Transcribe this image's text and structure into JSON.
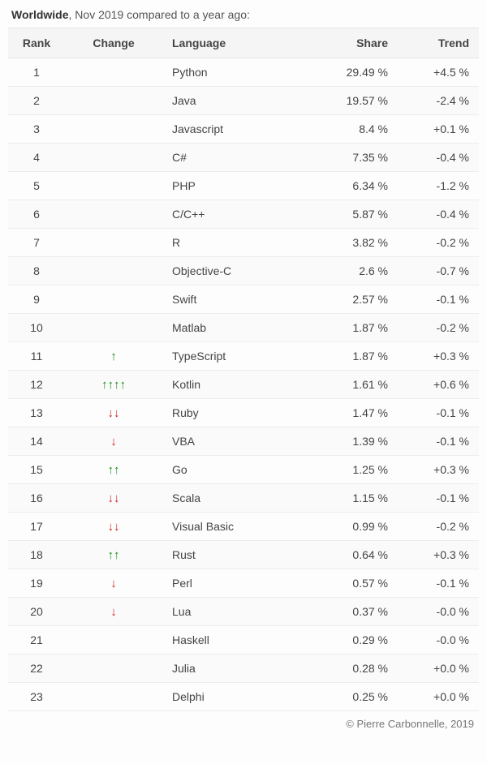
{
  "title_bold": "Worldwide",
  "title_rest": ", Nov 2019 compared to a year ago:",
  "columns": {
    "rank": "Rank",
    "change": "Change",
    "language": "Language",
    "share": "Share",
    "trend": "Trend"
  },
  "arrow_glyphs": {
    "up": "↑",
    "down": "↓"
  },
  "colors": {
    "up": "#1a8f1a",
    "down": "#d02424",
    "header_bg": "#f5f5f5",
    "row_alt_bg": "#fafafa",
    "border": "#ececec",
    "text": "#444"
  },
  "rows": [
    {
      "rank": "1",
      "change_up": 0,
      "change_down": 0,
      "language": "Python",
      "share": "29.49 %",
      "trend": "+4.5 %"
    },
    {
      "rank": "2",
      "change_up": 0,
      "change_down": 0,
      "language": "Java",
      "share": "19.57 %",
      "trend": "-2.4 %"
    },
    {
      "rank": "3",
      "change_up": 0,
      "change_down": 0,
      "language": "Javascript",
      "share": "8.4 %",
      "trend": "+0.1 %"
    },
    {
      "rank": "4",
      "change_up": 0,
      "change_down": 0,
      "language": "C#",
      "share": "7.35 %",
      "trend": "-0.4 %"
    },
    {
      "rank": "5",
      "change_up": 0,
      "change_down": 0,
      "language": "PHP",
      "share": "6.34 %",
      "trend": "-1.2 %"
    },
    {
      "rank": "6",
      "change_up": 0,
      "change_down": 0,
      "language": "C/C++",
      "share": "5.87 %",
      "trend": "-0.4 %"
    },
    {
      "rank": "7",
      "change_up": 0,
      "change_down": 0,
      "language": "R",
      "share": "3.82 %",
      "trend": "-0.2 %"
    },
    {
      "rank": "8",
      "change_up": 0,
      "change_down": 0,
      "language": "Objective-C",
      "share": "2.6 %",
      "trend": "-0.7 %"
    },
    {
      "rank": "9",
      "change_up": 0,
      "change_down": 0,
      "language": "Swift",
      "share": "2.57 %",
      "trend": "-0.1 %"
    },
    {
      "rank": "10",
      "change_up": 0,
      "change_down": 0,
      "language": "Matlab",
      "share": "1.87 %",
      "trend": "-0.2 %"
    },
    {
      "rank": "11",
      "change_up": 1,
      "change_down": 0,
      "language": "TypeScript",
      "share": "1.87 %",
      "trend": "+0.3 %"
    },
    {
      "rank": "12",
      "change_up": 4,
      "change_down": 0,
      "language": "Kotlin",
      "share": "1.61 %",
      "trend": "+0.6 %"
    },
    {
      "rank": "13",
      "change_up": 0,
      "change_down": 2,
      "language": "Ruby",
      "share": "1.47 %",
      "trend": "-0.1 %"
    },
    {
      "rank": "14",
      "change_up": 0,
      "change_down": 1,
      "language": "VBA",
      "share": "1.39 %",
      "trend": "-0.1 %"
    },
    {
      "rank": "15",
      "change_up": 2,
      "change_down": 0,
      "language": "Go",
      "share": "1.25 %",
      "trend": "+0.3 %"
    },
    {
      "rank": "16",
      "change_up": 0,
      "change_down": 2,
      "language": "Scala",
      "share": "1.15 %",
      "trend": "-0.1 %"
    },
    {
      "rank": "17",
      "change_up": 0,
      "change_down": 2,
      "language": "Visual Basic",
      "share": "0.99 %",
      "trend": "-0.2 %"
    },
    {
      "rank": "18",
      "change_up": 2,
      "change_down": 0,
      "language": "Rust",
      "share": "0.64 %",
      "trend": "+0.3 %"
    },
    {
      "rank": "19",
      "change_up": 0,
      "change_down": 1,
      "language": "Perl",
      "share": "0.57 %",
      "trend": "-0.1 %"
    },
    {
      "rank": "20",
      "change_up": 0,
      "change_down": 1,
      "language": "Lua",
      "share": "0.37 %",
      "trend": "-0.0 %"
    },
    {
      "rank": "21",
      "change_up": 0,
      "change_down": 0,
      "language": "Haskell",
      "share": "0.29 %",
      "trend": "-0.0 %"
    },
    {
      "rank": "22",
      "change_up": 0,
      "change_down": 0,
      "language": "Julia",
      "share": "0.28 %",
      "trend": "+0.0 %"
    },
    {
      "rank": "23",
      "change_up": 0,
      "change_down": 0,
      "language": "Delphi",
      "share": "0.25 %",
      "trend": "+0.0 %"
    }
  ],
  "footer": "© Pierre Carbonnelle, 2019"
}
